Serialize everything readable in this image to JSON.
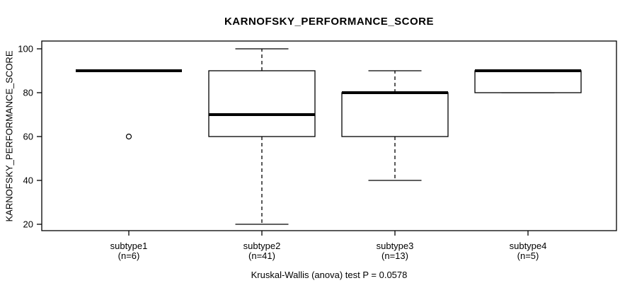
{
  "chart_data": {
    "type": "boxplot",
    "title": "KARNOFSKY_PERFORMANCE_SCORE",
    "ylabel": "KARNOFSKY_PERFORMANCE_SCORE",
    "footer": "Kruskal-Wallis (anova) test P = 0.0578",
    "ylim": [
      20,
      100
    ],
    "yticks": [
      20,
      40,
      60,
      80,
      100
    ],
    "grid": false,
    "legend": "none",
    "colors": {
      "line": "#000000",
      "background": "#ffffff"
    },
    "groups": [
      {
        "label": "subtype1",
        "sublabel": "(n=6)",
        "n": 6,
        "min": 90,
        "q1": 90,
        "median": 90,
        "q3": 90,
        "max": 90,
        "outliers": [
          60
        ]
      },
      {
        "label": "subtype2",
        "sublabel": "(n=41)",
        "n": 41,
        "min": 20,
        "q1": 60,
        "median": 70,
        "q3": 90,
        "max": 100,
        "outliers": []
      },
      {
        "label": "subtype3",
        "sublabel": "(n=13)",
        "n": 13,
        "min": 40,
        "q1": 60,
        "median": 80,
        "q3": 80,
        "max": 90,
        "outliers": []
      },
      {
        "label": "subtype4",
        "sublabel": "(n=5)",
        "n": 5,
        "min": 80,
        "q1": 80,
        "median": 90,
        "q3": 90,
        "max": 90,
        "outliers": []
      }
    ]
  }
}
